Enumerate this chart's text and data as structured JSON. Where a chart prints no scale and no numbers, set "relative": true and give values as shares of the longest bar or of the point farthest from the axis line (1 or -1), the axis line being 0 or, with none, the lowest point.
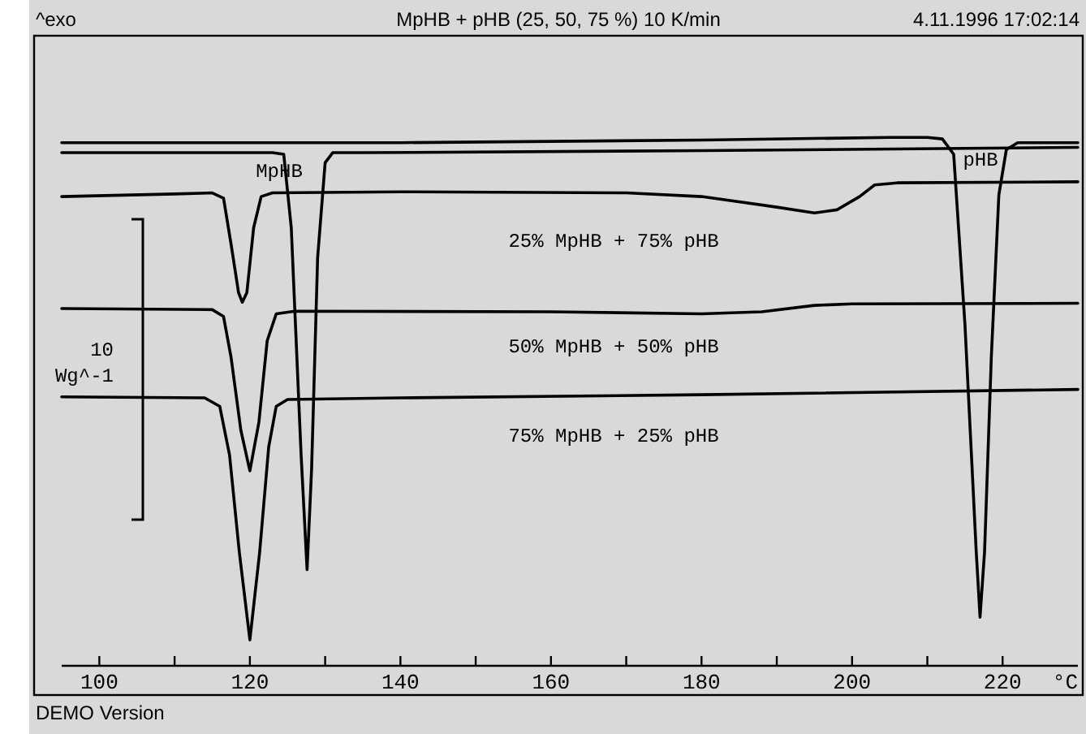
{
  "chart_data": {
    "type": "line",
    "title": "MpHB + pHB (25, 50, 75 %) 10 K/min",
    "xlabel": "°C",
    "relative": true,
    "xlim": [
      95,
      230
    ],
    "xticks": [
      100,
      {
        "value": 110,
        "label": null
      },
      120,
      {
        "value": 130,
        "label": null
      },
      140,
      {
        "value": 150,
        "label": null
      },
      160,
      {
        "value": 170,
        "label": null
      },
      180,
      {
        "value": 190,
        "label": null
      },
      200,
      {
        "value": 210,
        "label": null
      },
      220
    ],
    "grid": false,
    "legend": false,
    "marker": "none",
    "line_style": "solid",
    "series": [
      {
        "color": "#000000",
        "x": [
          95,
          140,
          180,
          205,
          210,
          212,
          213.5,
          215,
          216.5,
          217,
          217.6,
          218.5,
          219.5,
          220.5,
          222,
          230
        ],
        "values": [
          0.99,
          0.99,
          0.995,
          1.0,
          1.0,
          0.997,
          0.968,
          0.645,
          0.215,
          0.092,
          0.215,
          0.584,
          0.891,
          0.977,
          0.99,
          0.99
        ]
      },
      {
        "color": "#000000",
        "x": [
          95,
          115,
          123,
          124.5,
          125.5,
          126.8,
          127.6,
          128.2,
          129,
          130,
          131,
          135,
          180,
          230
        ],
        "values": [
          0.971,
          0.971,
          0.971,
          0.968,
          0.829,
          0.401,
          0.182,
          0.372,
          0.772,
          0.952,
          0.971,
          0.971,
          0.975,
          0.981
        ]
      },
      {
        "color": "#000000",
        "x": [
          95,
          110,
          115,
          116.5,
          117.5,
          118.5,
          119,
          119.6,
          120.5,
          121.5,
          123,
          140,
          170,
          180,
          190,
          195,
          198,
          201,
          203,
          206,
          230
        ],
        "values": [
          0.888,
          0.893,
          0.895,
          0.885,
          0.798,
          0.706,
          0.688,
          0.706,
          0.829,
          0.888,
          0.895,
          0.897,
          0.895,
          0.888,
          0.868,
          0.857,
          0.863,
          0.888,
          0.91,
          0.914,
          0.916
        ]
      },
      {
        "color": "#000000",
        "x": [
          95,
          115,
          116.5,
          117.5,
          118.8,
          120,
          121.2,
          122.3,
          123.5,
          126,
          160,
          180,
          188,
          195,
          200,
          230
        ],
        "values": [
          0.676,
          0.674,
          0.661,
          0.584,
          0.446,
          0.369,
          0.461,
          0.615,
          0.666,
          0.671,
          0.67,
          0.666,
          0.67,
          0.682,
          0.685,
          0.686
        ]
      },
      {
        "color": "#000000",
        "x": [
          95,
          114,
          116,
          117.3,
          118.6,
          120,
          121.3,
          122.5,
          123.5,
          125,
          140,
          180,
          230
        ],
        "values": [
          0.509,
          0.507,
          0.491,
          0.399,
          0.215,
          0.049,
          0.215,
          0.414,
          0.491,
          0.504,
          0.507,
          0.513,
          0.523
        ]
      }
    ],
    "annotations": [
      "^exo",
      "4.11.1996 17:02:14",
      "DEMO Version",
      "10",
      "Wg^-1",
      {
        "text": "MpHB",
        "x": 123.9,
        "y": 0.935
      },
      "pHB",
      "25% MpHB + 75% pHB",
      "50% MpHB + 50% pHB",
      "75% MpHB + 25% pHB"
    ]
  }
}
